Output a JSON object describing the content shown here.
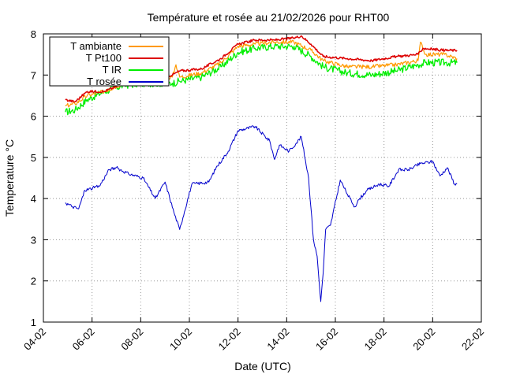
{
  "chart_data": {
    "type": "line",
    "title": "Température et rosée au 21/02/2026 pour RHT00",
    "xlabel": "Date (UTC)",
    "ylabel": "Temperature °C",
    "x_unit": "date",
    "xlim": [
      "04-02",
      "22-02"
    ],
    "ylim": [
      1,
      8
    ],
    "x_ticks": [
      "04-02",
      "06-02",
      "08-02",
      "10-02",
      "12-02",
      "14-02",
      "16-02",
      "18-02",
      "20-02",
      "22-02"
    ],
    "y_ticks": [
      "1",
      "2",
      "3",
      "4",
      "5",
      "6",
      "7",
      "8"
    ],
    "grid": true,
    "legend_position": "top-left",
    "series": [
      {
        "name": "T ambiante",
        "color": "#ff9900",
        "x": [
          4.9,
          5.3,
          5.8,
          6.5,
          7.3,
          8.2,
          9.3,
          9.45,
          9.6,
          10.5,
          11.3,
          12.0,
          12.7,
          13.5,
          14.3,
          15.0,
          15.5,
          16.5,
          17.5,
          18.5,
          19.4,
          19.5,
          19.7,
          20.5,
          21.0
        ],
        "y": [
          6.25,
          6.3,
          6.5,
          6.6,
          6.8,
          6.9,
          6.95,
          7.25,
          6.95,
          7.05,
          7.3,
          7.7,
          7.75,
          7.8,
          7.8,
          7.6,
          7.35,
          7.2,
          7.2,
          7.25,
          7.35,
          7.8,
          7.5,
          7.5,
          7.4
        ]
      },
      {
        "name": "T Pt100",
        "color": "#dd0000",
        "x": [
          4.9,
          5.3,
          5.8,
          6.5,
          7.3,
          8.2,
          9.3,
          9.6,
          10.5,
          11.3,
          12.0,
          12.7,
          13.5,
          14.3,
          14.6,
          15.0,
          15.5,
          16.5,
          17.5,
          18.5,
          19.4,
          19.6,
          20.5,
          21.0
        ],
        "y": [
          6.4,
          6.35,
          6.6,
          6.6,
          6.8,
          6.9,
          7.0,
          7.1,
          7.15,
          7.4,
          7.75,
          7.85,
          7.85,
          7.9,
          7.95,
          7.75,
          7.45,
          7.4,
          7.35,
          7.45,
          7.5,
          7.65,
          7.6,
          7.6
        ]
      },
      {
        "name": "T IR",
        "color": "#00ee00",
        "x": [
          4.9,
          5.3,
          5.8,
          6.5,
          7.3,
          8.2,
          9.3,
          9.6,
          10.5,
          11.3,
          12.0,
          12.7,
          13.5,
          14.3,
          15.0,
          15.5,
          16.5,
          17.5,
          18.5,
          19.4,
          19.7,
          20.5,
          21.0
        ],
        "y": [
          6.1,
          6.15,
          6.4,
          6.6,
          6.75,
          6.8,
          6.8,
          6.85,
          6.95,
          7.2,
          7.55,
          7.65,
          7.7,
          7.7,
          7.45,
          7.2,
          7.05,
          7.0,
          7.1,
          7.25,
          7.3,
          7.3,
          7.3
        ]
      },
      {
        "name": "T rosée",
        "color": "#0000cc",
        "x": [
          4.9,
          5.2,
          5.45,
          5.7,
          6.3,
          6.7,
          7.0,
          7.5,
          8.1,
          8.6,
          9.0,
          9.4,
          9.6,
          10.1,
          10.8,
          11.1,
          11.6,
          12.0,
          12.7,
          13.3,
          13.5,
          13.7,
          14.1,
          14.4,
          14.6,
          14.9,
          15.1,
          15.25,
          15.4,
          15.5,
          15.6,
          15.8,
          16.2,
          16.5,
          16.8,
          17.0,
          17.3,
          17.8,
          18.2,
          18.6,
          19.0,
          19.5,
          20.0,
          20.3,
          20.6,
          20.9,
          21.0
        ],
        "y": [
          3.9,
          3.8,
          3.75,
          4.2,
          4.3,
          4.7,
          4.75,
          4.6,
          4.5,
          4.0,
          4.4,
          3.6,
          3.25,
          4.35,
          4.4,
          4.75,
          5.15,
          5.65,
          5.75,
          5.4,
          4.95,
          5.3,
          5.15,
          5.35,
          5.5,
          4.5,
          3.0,
          2.6,
          1.5,
          2.2,
          3.25,
          3.35,
          4.45,
          4.1,
          3.8,
          4.0,
          4.2,
          4.35,
          4.3,
          4.7,
          4.7,
          4.85,
          4.9,
          4.55,
          4.75,
          4.35,
          4.35
        ]
      }
    ]
  }
}
